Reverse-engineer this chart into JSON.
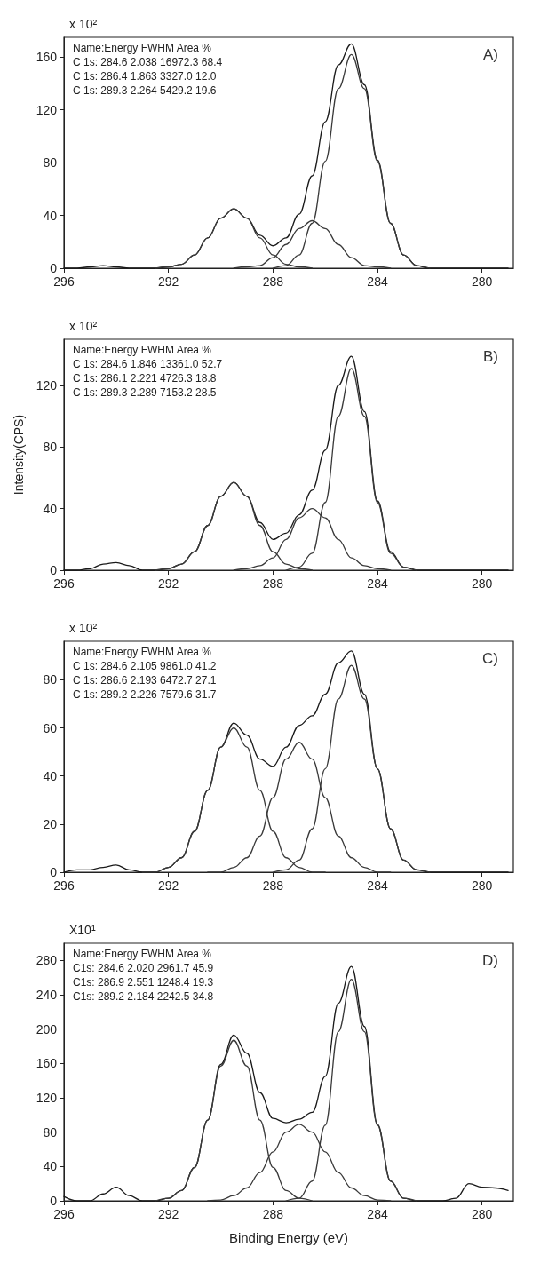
{
  "chart_data": [
    {
      "type": "line",
      "title": "A)",
      "marker": "none",
      "xlim": [
        296,
        278.8
      ],
      "ylim": [
        0,
        175
      ],
      "xticks": [
        296,
        292,
        288,
        284,
        280
      ],
      "yticks": [
        0,
        40,
        80,
        120,
        160
      ],
      "annotations": [
        "x 10²",
        "Name:Energy FWHM Area %",
        "C 1s: 284.6 2.038 16972.3 68.4",
        "C 1s: 286.4 1.863 3327.0 12.0",
        "C 1s: 289.3 2.264 5429.2 19.6"
      ],
      "series": [
        {
          "color": "#1a1a1a",
          "x": [
            296,
            295.5,
            295,
            294.5,
            294,
            293.5,
            293,
            292.5,
            292,
            291.5,
            291,
            290.5,
            290,
            289.5,
            289,
            288.5,
            288,
            287.5,
            287,
            286.5,
            286,
            285.5,
            285,
            284.5,
            284,
            283.5,
            283,
            282.5,
            282,
            281.5,
            281,
            280.5,
            280,
            279.5,
            279
          ],
          "values": [
            0,
            0,
            1,
            2,
            1,
            0,
            0,
            0,
            1,
            3,
            10,
            23,
            38,
            45,
            38,
            25,
            17,
            23,
            41,
            70,
            111,
            154,
            170,
            139,
            82,
            34,
            10,
            2,
            0,
            0,
            0,
            0,
            0,
            0,
            0
          ]
        },
        {
          "color": "#3a3a3a",
          "x": [
            288,
            287.5,
            287,
            286.5,
            286,
            285.5,
            285,
            284.5,
            284,
            283.5,
            283,
            282.5,
            282
          ],
          "values": [
            0,
            2,
            10,
            34,
            81,
            136,
            162,
            136,
            81,
            34,
            10,
            2,
            0
          ]
        },
        {
          "color": "#3a3a3a",
          "x": [
            289.5,
            289,
            288.5,
            288,
            287.5,
            287,
            286.5,
            286,
            285.5,
            285,
            284.5,
            284,
            283.5
          ],
          "values": [
            0,
            1,
            2,
            8,
            18,
            30,
            36,
            30,
            18,
            8,
            2,
            1,
            0
          ]
        },
        {
          "color": "#3a3a3a",
          "x": [
            292.5,
            292,
            291.5,
            291,
            290.5,
            290,
            289.5,
            289,
            288.5,
            288,
            287.5,
            287,
            286.5
          ],
          "values": [
            0,
            1,
            3,
            10,
            23,
            38,
            45,
            38,
            23,
            10,
            3,
            1,
            0
          ]
        }
      ]
    },
    {
      "type": "line",
      "title": "B)",
      "ylabel": "Intensity(CPS)",
      "marker": "none",
      "xlim": [
        296,
        278.8
      ],
      "ylim": [
        0,
        150
      ],
      "xticks": [
        296,
        292,
        288,
        284,
        280
      ],
      "yticks": [
        0,
        40,
        80,
        120
      ],
      "annotations": [
        "x 10²",
        "Name:Energy FWHM Area %",
        "C 1s: 284.6 1.846 13361.0 52.7",
        "C 1s: 286.1 2.221 4726.3 18.8",
        "C 1s: 289.3 2.289 7153.2 28.5"
      ],
      "series": [
        {
          "color": "#1a1a1a",
          "x": [
            296,
            295.5,
            295,
            294.5,
            294,
            293.5,
            293,
            292.5,
            292,
            291.5,
            291,
            290.5,
            290,
            289.5,
            289,
            288.5,
            288,
            287.5,
            287,
            286.5,
            286,
            285.5,
            285,
            284.5,
            284,
            283.5,
            283,
            282.5,
            282,
            281.5,
            281,
            280.5,
            280,
            279.5,
            279
          ],
          "values": [
            0,
            0,
            1,
            4,
            5,
            3,
            0,
            0,
            1,
            4,
            12,
            29,
            48,
            57,
            48,
            31,
            20,
            24,
            36,
            52,
            78,
            120,
            139,
            103,
            45,
            12,
            2,
            0,
            0,
            0,
            0,
            0,
            0,
            0,
            0
          ]
        },
        {
          "color": "#3a3a3a",
          "x": [
            287.5,
            287,
            286.5,
            286,
            285.5,
            285,
            284.5,
            284,
            283.5,
            283,
            282.5
          ],
          "values": [
            0,
            2,
            11,
            44,
            100,
            131,
            100,
            44,
            11,
            2,
            0
          ]
        },
        {
          "color": "#3a3a3a",
          "x": [
            289.5,
            289,
            288.5,
            288,
            287.5,
            287,
            286.5,
            286,
            285.5,
            285,
            284.5,
            284,
            283.5
          ],
          "values": [
            0,
            1,
            3,
            8,
            20,
            34,
            40,
            34,
            20,
            8,
            3,
            1,
            0
          ]
        },
        {
          "color": "#3a3a3a",
          "x": [
            292.5,
            292,
            291.5,
            291,
            290.5,
            290,
            289.5,
            289,
            288.5,
            288,
            287.5,
            287,
            286.5
          ],
          "values": [
            0,
            1,
            4,
            12,
            29,
            48,
            57,
            48,
            29,
            12,
            4,
            1,
            0
          ]
        }
      ]
    },
    {
      "type": "line",
      "title": "C)",
      "marker": "none",
      "xlim": [
        296,
        278.8
      ],
      "ylim": [
        0,
        96
      ],
      "xticks": [
        296,
        292,
        288,
        284,
        280
      ],
      "yticks": [
        0,
        20,
        40,
        60,
        80
      ],
      "annotations": [
        "x 10²",
        "Name:Energy FWHM Area %",
        "C 1s: 284.6 2.105 9861.0 41.2",
        "C 1s: 286.6 2.193 6472.7 27.1",
        "C 1s: 289.2 2.226 7579.6 31.7"
      ],
      "series": [
        {
          "color": "#1a1a1a",
          "x": [
            296,
            295.5,
            295,
            294.5,
            294,
            293.5,
            293,
            292.5,
            292,
            291.5,
            291,
            290.5,
            290,
            289.5,
            289,
            288.5,
            288,
            287.5,
            287,
            286.5,
            286,
            285.5,
            285,
            284.5,
            284,
            283.5,
            283,
            282.5,
            282,
            281.5,
            281,
            280.5,
            280,
            279.5,
            279
          ],
          "values": [
            0,
            1,
            1,
            2,
            3,
            1,
            0,
            0,
            2,
            6,
            17,
            34,
            52,
            62,
            57,
            47,
            44,
            52,
            61,
            65,
            74,
            87,
            92,
            74,
            43,
            18,
            5,
            1,
            0,
            0,
            0,
            0,
            0,
            0,
            0
          ]
        },
        {
          "color": "#3a3a3a",
          "x": [
            288,
            287.5,
            287,
            286.5,
            286,
            285.5,
            285,
            284.5,
            284,
            283.5,
            283,
            282.5,
            282
          ],
          "values": [
            0,
            1,
            5,
            18,
            43,
            72,
            86,
            72,
            43,
            18,
            5,
            1,
            0
          ]
        },
        {
          "color": "#3a3a3a",
          "x": [
            290.5,
            290,
            289.5,
            289,
            288.5,
            288,
            287.5,
            287,
            286.5,
            286,
            285.5,
            285,
            284.5,
            284,
            283.5
          ],
          "values": [
            0,
            0,
            2,
            6,
            15,
            31,
            47,
            54,
            47,
            31,
            15,
            6,
            2,
            0,
            0
          ]
        },
        {
          "color": "#3a3a3a",
          "x": [
            293,
            292.5,
            292,
            291.5,
            291,
            290.5,
            290,
            289.5,
            289,
            288.5,
            288,
            287.5,
            287,
            286.5,
            286
          ],
          "values": [
            0,
            0,
            2,
            6,
            17,
            34,
            52,
            60,
            52,
            34,
            17,
            6,
            2,
            0,
            0
          ]
        }
      ]
    },
    {
      "type": "line",
      "title": "D)",
      "xlabel": "Binding Energy (eV)",
      "marker": "none",
      "xlim": [
        296,
        278.8
      ],
      "ylim": [
        0,
        300
      ],
      "xticks": [
        296,
        292,
        288,
        284,
        280
      ],
      "yticks": [
        0,
        40,
        80,
        120,
        160,
        200,
        240,
        280
      ],
      "annotations": [
        "X10¹",
        "Name:Energy FWHM Area %",
        "C1s: 284.6 2.020 2961.7 45.9",
        "C1s: 286.9 2.551 1248.4 19.3",
        "C1s: 289.2 2.184 2242.5 34.8"
      ],
      "series": [
        {
          "color": "#1a1a1a",
          "x": [
            296,
            295.5,
            295,
            294.5,
            294,
            293.5,
            293,
            292.5,
            292,
            291.5,
            291,
            290.5,
            290,
            289.5,
            289,
            288.5,
            288,
            287.5,
            287,
            286.5,
            286,
            285.5,
            285,
            284.5,
            284,
            283.5,
            283,
            282.5,
            282,
            281.5,
            281,
            280.5,
            280,
            279.5,
            279
          ],
          "values": [
            5,
            0,
            0,
            8,
            16,
            6,
            0,
            0,
            3,
            12,
            39,
            94,
            159,
            193,
            172,
            126,
            96,
            91,
            95,
            103,
            145,
            230,
            273,
            203,
            89,
            23,
            3,
            0,
            0,
            0,
            3,
            20,
            16,
            15,
            12
          ]
        },
        {
          "color": "#3a3a3a",
          "x": [
            287.5,
            287,
            286.5,
            286,
            285.5,
            285,
            284.5,
            284,
            283.5,
            283,
            282.5
          ],
          "values": [
            0,
            3,
            23,
            88,
            197,
            258,
            197,
            88,
            23,
            3,
            0
          ]
        },
        {
          "color": "#3a3a3a",
          "x": [
            290.5,
            290,
            289.5,
            289,
            288.5,
            288,
            287.5,
            287,
            286.5,
            286,
            285.5,
            285,
            284.5,
            284,
            283.5
          ],
          "values": [
            0,
            1,
            6,
            15,
            33,
            57,
            80,
            89,
            80,
            57,
            33,
            15,
            6,
            1,
            0
          ]
        },
        {
          "color": "#3a3a3a",
          "x": [
            292.5,
            292,
            291.5,
            291,
            290.5,
            290,
            289.5,
            289,
            288.5,
            288,
            287.5,
            287,
            286.5
          ],
          "values": [
            0,
            3,
            12,
            39,
            94,
            157,
            187,
            157,
            94,
            39,
            12,
            3,
            0
          ]
        }
      ]
    }
  ]
}
